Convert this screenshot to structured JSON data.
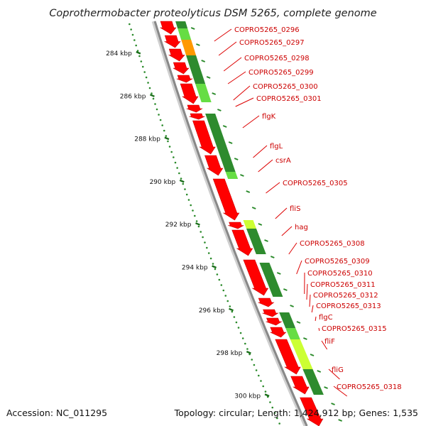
{
  "title": "Coprothermobacter proteolyticus DSM 5265, complete genome",
  "footer": {
    "accession": "Accession: NC_011295",
    "stats": "Topology: circular; Length: 1,424,912 bp; Genes: 1,535"
  },
  "colors": {
    "title": "#222222",
    "gene_label": "#cc0000",
    "leader_line": "#dd0000",
    "cds_arrow": "#ff0000",
    "backbone": "#888888",
    "tick_dots": "#2a8a2a",
    "dark_green": "#2e8b2e",
    "light_green": "#66dd44",
    "yellow_green": "#ccff33",
    "orange": "#ff9900"
  },
  "kbp_ticks": [
    "284 kbp",
    "286 kbp",
    "288 kbp",
    "290 kbp",
    "292 kbp",
    "294 kbp",
    "296 kbp",
    "298 kbp",
    "300 kbp"
  ],
  "genes": [
    "COPRO5265_0296",
    "COPRO5265_0297",
    "COPRO5265_0298",
    "COPRO5265_0299",
    "COPRO5265_0300",
    "COPRO5265_0301",
    "flgK",
    "flgL",
    "csrA",
    "COPRO5265_0305",
    "fliS",
    "hag",
    "COPRO5265_0308",
    "COPRO5265_0309",
    "COPRO5265_0310",
    "COPRO5265_0311",
    "COPRO5265_0312",
    "COPRO5265_0313",
    "flgC",
    "COPRO5265_0315",
    "fliF",
    "fliG",
    "COPRO5265_0318"
  ]
}
